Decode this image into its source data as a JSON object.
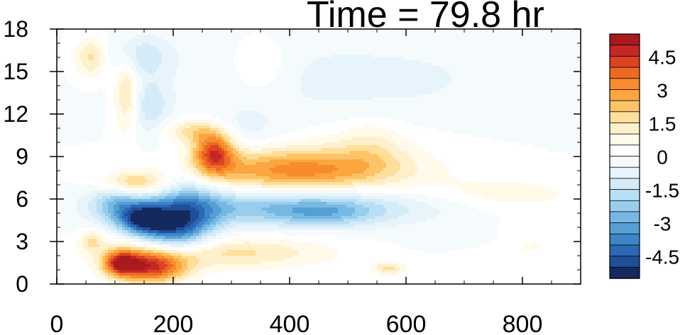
{
  "chart_data": {
    "type": "heatmap",
    "title": "Time = 79.8 hr",
    "xlabel": "",
    "ylabel": "",
    "xlim": [
      0,
      900
    ],
    "ylim": [
      0,
      18
    ],
    "x_ticks": [
      "0",
      "200",
      "400",
      "600",
      "800"
    ],
    "y_ticks": [
      "0",
      "3",
      "6",
      "9",
      "12",
      "15",
      "18"
    ],
    "colorbar": {
      "levels": [
        -5.5,
        -5,
        -4.5,
        -4,
        -3.5,
        -3,
        -2.5,
        -2,
        -1.5,
        -1,
        -0.5,
        0,
        0.5,
        1,
        1.5,
        2,
        2.5,
        3,
        3.5,
        4,
        4.5,
        5,
        5.5
      ],
      "colors": [
        "#16295e",
        "#1f4e9b",
        "#2b68b6",
        "#3c85c7",
        "#569fd4",
        "#77b8e2",
        "#98cded",
        "#b9dff5",
        "#d4ebf8",
        "#e7f4fb",
        "#f5fafd",
        "#ffffff",
        "#fffaea",
        "#fff0cc",
        "#ffdf9a",
        "#fdc467",
        "#fba640",
        "#f88b2c",
        "#ec6a24",
        "#dd4323",
        "#c62626",
        "#a81a1e"
      ],
      "tick_labels": [
        "4.5",
        "3",
        "1.5",
        "0",
        "-1.5",
        "-3",
        "-4.5"
      ],
      "tick_values": [
        4.5,
        3,
        1.5,
        0,
        -1.5,
        -3,
        -4.5
      ]
    },
    "features": [
      {
        "x": 160,
        "y": 1.2,
        "sx": 45,
        "sy": 0.8,
        "v": 4.5
      },
      {
        "x": 110,
        "y": 1.5,
        "sx": 20,
        "sy": 0.6,
        "v": 3.5
      },
      {
        "x": 300,
        "y": 2.2,
        "sx": 120,
        "sy": 0.8,
        "v": 1.6
      },
      {
        "x": 180,
        "y": 2.8,
        "sx": 60,
        "sy": 0.9,
        "v": 1.2
      },
      {
        "x": 200,
        "y": 3.8,
        "sx": 45,
        "sy": 1.2,
        "v": -4.5
      },
      {
        "x": 145,
        "y": 4.6,
        "sx": 30,
        "sy": 0.8,
        "v": -3.5
      },
      {
        "x": 380,
        "y": 5.4,
        "sx": 180,
        "sy": 0.9,
        "v": -2.4
      },
      {
        "x": 460,
        "y": 5.0,
        "sx": 60,
        "sy": 0.7,
        "v": -1.3
      },
      {
        "x": 100,
        "y": 5.8,
        "sx": 30,
        "sy": 1.0,
        "v": -1.8
      },
      {
        "x": 130,
        "y": 7.1,
        "sx": 40,
        "sy": 0.6,
        "v": 2.2
      },
      {
        "x": 400,
        "y": 8.0,
        "sx": 120,
        "sy": 1.0,
        "v": 2.6
      },
      {
        "x": 480,
        "y": 8.5,
        "sx": 120,
        "sy": 1.5,
        "v": 0.9
      },
      {
        "x": 540,
        "y": 9.8,
        "sx": 40,
        "sy": 1.3,
        "v": 0.8
      },
      {
        "x": 270,
        "y": 9.3,
        "sx": 25,
        "sy": 1.1,
        "v": 4.0
      },
      {
        "x": 230,
        "y": 10.8,
        "sx": 35,
        "sy": 0.6,
        "v": 1.6
      },
      {
        "x": 120,
        "y": 13.5,
        "sx": 15,
        "sy": 2.0,
        "v": 1.8
      },
      {
        "x": 160,
        "y": 12.5,
        "sx": 25,
        "sy": 1.5,
        "v": -1.3
      },
      {
        "x": 60,
        "y": 16.0,
        "sx": 20,
        "sy": 1.0,
        "v": 1.8
      },
      {
        "x": 140,
        "y": 16.2,
        "sx": 40,
        "sy": 1.0,
        "v": -1.3
      },
      {
        "x": 350,
        "y": 15.2,
        "sx": 40,
        "sy": 1.4,
        "v": 0.8
      },
      {
        "x": 500,
        "y": 14.5,
        "sx": 220,
        "sy": 2.0,
        "v": -0.7
      },
      {
        "x": 770,
        "y": 6.3,
        "sx": 100,
        "sy": 0.9,
        "v": 0.8
      },
      {
        "x": 800,
        "y": 2.8,
        "sx": 70,
        "sy": 0.8,
        "v": 0.6
      },
      {
        "x": 570,
        "y": 1.1,
        "sx": 20,
        "sy": 0.3,
        "v": 1.6
      },
      {
        "x": 700,
        "y": 3.2,
        "sx": 60,
        "sy": 0.5,
        "v": -0.6
      },
      {
        "x": 60,
        "y": 3.0,
        "sx": 15,
        "sy": 0.6,
        "v": 1.4
      },
      {
        "x": 230,
        "y": 6.0,
        "sx": 40,
        "sy": 1.5,
        "v": -1.6
      },
      {
        "x": 320,
        "y": 11.0,
        "sx": 50,
        "sy": 1.0,
        "v": -0.7
      }
    ]
  }
}
